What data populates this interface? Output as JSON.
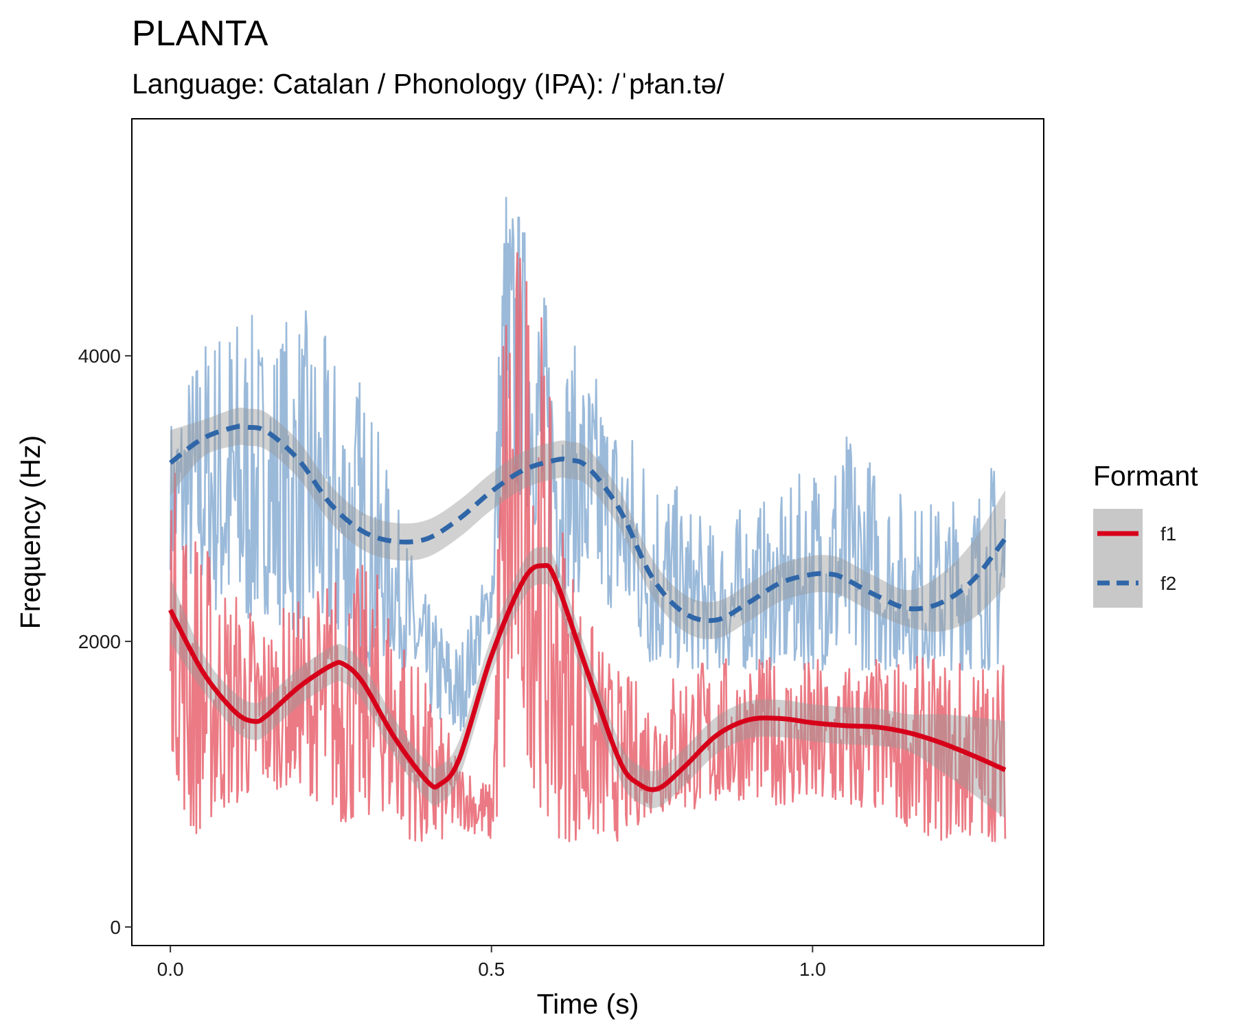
{
  "chart_data": {
    "type": "line",
    "title": "PLANTA",
    "subtitle": "Language: Catalan / Phonology (IPA): /ˈpɫan.tə/",
    "xlabel": "Time (s)",
    "ylabel": "Frequency (Hz)",
    "xlim": [
      -0.06,
      1.36
    ],
    "ylim": [
      -130,
      5660
    ],
    "x_ticks": [
      0.0,
      0.5,
      1.0
    ],
    "x_tick_labels": [
      "0.0",
      "0.5",
      "1.0"
    ],
    "y_ticks": [
      0,
      2000,
      4000
    ],
    "y_tick_labels": [
      "0",
      "2000",
      "4000"
    ],
    "grid": false,
    "legend": {
      "title": "Formant",
      "position": "right",
      "entries": [
        {
          "label": "f1",
          "color": "#d7001a",
          "linetype": "solid"
        },
        {
          "label": "f2",
          "color": "#2f66a8",
          "linetype": "dashed"
        }
      ]
    },
    "series": [
      {
        "name": "f1",
        "color": "#d7001a",
        "raw_color": "#e8636f",
        "smooth": {
          "x": [
            0.0,
            0.05,
            0.1,
            0.13,
            0.15,
            0.2,
            0.25,
            0.27,
            0.3,
            0.35,
            0.4,
            0.42,
            0.45,
            0.5,
            0.55,
            0.58,
            0.6,
            0.65,
            0.7,
            0.73,
            0.76,
            0.8,
            0.85,
            0.9,
            0.95,
            1.0,
            1.05,
            1.1,
            1.15,
            1.2,
            1.25,
            1.3
          ],
          "y": [
            2220,
            1790,
            1510,
            1440,
            1480,
            1680,
            1830,
            1840,
            1710,
            1320,
            1020,
            1000,
            1180,
            1900,
            2430,
            2530,
            2430,
            1780,
            1160,
            1000,
            970,
            1120,
            1340,
            1450,
            1460,
            1430,
            1410,
            1400,
            1360,
            1290,
            1200,
            1100
          ]
        },
        "band_halfwidth": 130,
        "raw_envelope": {
          "x": [
            0.0,
            0.03,
            0.08,
            0.15,
            0.2,
            0.27,
            0.33,
            0.4,
            0.45,
            0.5,
            0.52,
            0.54,
            0.57,
            0.6,
            0.65,
            0.7,
            0.75,
            0.8,
            0.9,
            1.0,
            1.1,
            1.2,
            1.3
          ],
          "lo": [
            1300,
            600,
            800,
            950,
            1000,
            700,
            800,
            500,
            700,
            600,
            800,
            1500,
            900,
            600,
            600,
            600,
            800,
            800,
            900,
            800,
            800,
            600,
            600
          ],
          "hi": [
            3300,
            3000,
            2500,
            2200,
            2300,
            2600,
            2500,
            1700,
            1200,
            1000,
            4950,
            4900,
            4850,
            3200,
            2200,
            1800,
            1700,
            1900,
            1900,
            1900,
            1900,
            1900,
            1900
          ]
        }
      },
      {
        "name": "f2",
        "color": "#2f66a8",
        "raw_color": "#8aaed3",
        "smooth": {
          "x": [
            0.0,
            0.05,
            0.1,
            0.12,
            0.15,
            0.2,
            0.25,
            0.3,
            0.35,
            0.4,
            0.45,
            0.5,
            0.55,
            0.6,
            0.62,
            0.65,
            0.7,
            0.75,
            0.8,
            0.85,
            0.9,
            0.95,
            1.0,
            1.03,
            1.05,
            1.1,
            1.15,
            1.2,
            1.25,
            1.3
          ],
          "y": [
            3250,
            3420,
            3500,
            3500,
            3470,
            3270,
            2960,
            2770,
            2700,
            2720,
            2860,
            3050,
            3200,
            3270,
            3270,
            3220,
            2920,
            2450,
            2200,
            2150,
            2270,
            2410,
            2470,
            2470,
            2440,
            2320,
            2230,
            2270,
            2430,
            2720
          ]
        },
        "band_halfwidth": 130,
        "raw_envelope": {
          "x": [
            0.0,
            0.05,
            0.1,
            0.15,
            0.2,
            0.25,
            0.3,
            0.35,
            0.4,
            0.45,
            0.5,
            0.52,
            0.55,
            0.6,
            0.65,
            0.7,
            0.75,
            0.8,
            0.85,
            0.9,
            0.95,
            1.0,
            1.05,
            1.1,
            1.15,
            1.2,
            1.25,
            1.3
          ],
          "lo": [
            2500,
            2300,
            2000,
            2200,
            2000,
            1900,
            1800,
            1900,
            1500,
            1300,
            2100,
            2900,
            3000,
            2400,
            2300,
            2200,
            1800,
            1800,
            1800,
            1800,
            1800,
            1800,
            1800,
            1800,
            1800,
            1800,
            1800,
            1800
          ],
          "hi": [
            3600,
            4200,
            4400,
            4200,
            4400,
            4100,
            3900,
            3000,
            2300,
            2000,
            2600,
            5400,
            5000,
            4200,
            4000,
            3600,
            3400,
            3000,
            2800,
            3000,
            3000,
            3300,
            3500,
            3300,
            3000,
            3000,
            3100,
            3400
          ]
        }
      }
    ]
  }
}
